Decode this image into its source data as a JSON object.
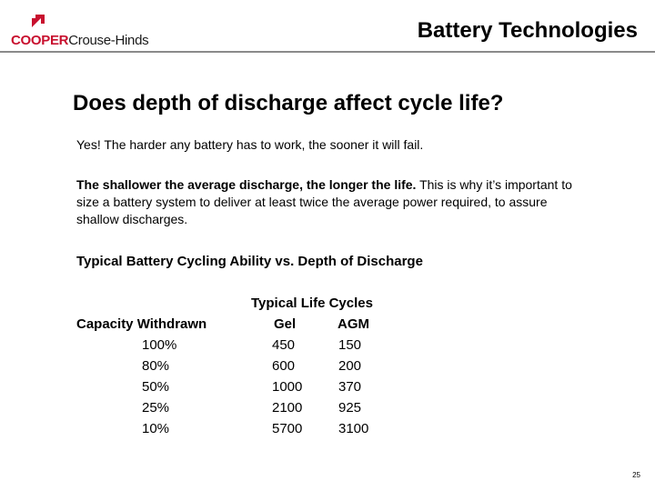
{
  "header": {
    "logo": {
      "brand": "COOPER",
      "sub": "Crouse-Hinds"
    },
    "title": "Battery Technologies"
  },
  "slide": {
    "headline": "Does depth of discharge affect cycle life?",
    "para1": "Yes! The harder any battery has to work, the sooner it will fail.",
    "para2_bold": "The shallower the average discharge, the longer the life.",
    "para2_rest": " This is why it’s important to size a battery system to deliver at least twice the average power required, to assure shallow discharges.",
    "table_title": "Typical Battery Cycling Ability vs. Depth of Discharge",
    "table": {
      "group_header": "Typical Life Cycles",
      "columns": [
        "Capacity Withdrawn",
        "Gel",
        "AGM"
      ],
      "rows": [
        [
          "100%",
          "450",
          "150"
        ],
        [
          "80%",
          "600",
          "200"
        ],
        [
          "50%",
          "1000",
          "370"
        ],
        [
          "25%",
          "2100",
          "925"
        ],
        [
          "10%",
          "5700",
          "3100"
        ]
      ]
    },
    "page_number": "25"
  },
  "colors": {
    "brand_red": "#c8102e",
    "rule_gray": "#8a8a8a"
  }
}
